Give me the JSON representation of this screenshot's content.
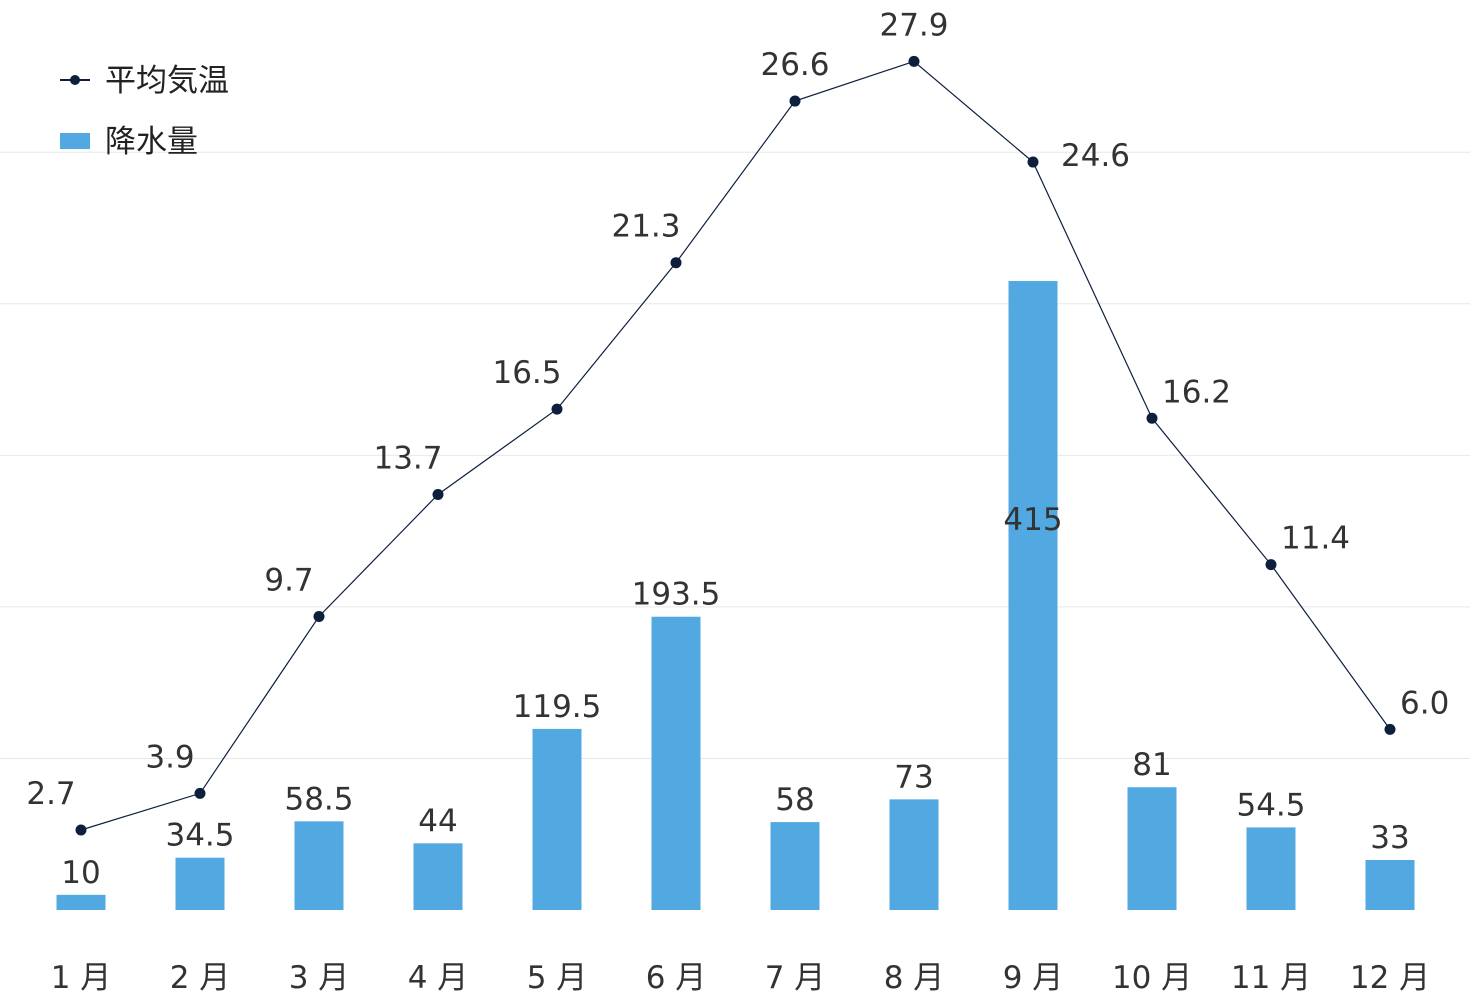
{
  "chart_data": {
    "type": "bar+line",
    "categories": [
      "1月",
      "2月",
      "3月",
      "4月",
      "5月",
      "6月",
      "7月",
      "8月",
      "9月",
      "10月",
      "11月",
      "12月"
    ],
    "x_tick_labels": [
      "1 月",
      "2 月",
      "3 月",
      "4 月",
      "5 月",
      "6 月",
      "7 月",
      "8 月",
      "9 月",
      "10 月",
      "11 月",
      "12 月"
    ],
    "series": [
      {
        "name": "平均気温",
        "type": "line",
        "color": "#0d1f3c",
        "values": [
          2.7,
          3.9,
          9.7,
          13.7,
          16.5,
          21.3,
          26.6,
          27.9,
          24.6,
          16.2,
          11.4,
          6.0
        ],
        "labels": [
          "2.7",
          "3.9",
          "9.7",
          "13.7",
          "16.5",
          "21.3",
          "26.6",
          "27.9",
          "24.6",
          "16.2",
          "11.4",
          "6.0"
        ],
        "axis_range": [
          -0.9,
          29.2
        ]
      },
      {
        "name": "降水量",
        "type": "bar",
        "color": "#52a9e1",
        "values": [
          10,
          34.5,
          58.5,
          44,
          119.5,
          193.5,
          58,
          73,
          415,
          81,
          54.5,
          33
        ],
        "labels": [
          "10",
          "34.5",
          "58.5",
          "44",
          "119.5",
          "193.5",
          "58",
          "73",
          "415",
          "81",
          "54.5",
          "33"
        ],
        "axis_range": [
          0,
          500
        ]
      }
    ],
    "title": "",
    "xlabel": "",
    "ylabel": "",
    "grid": true,
    "gridlines_bar_units": [
      100,
      200,
      300,
      400,
      500
    ],
    "legend_position": "top-left"
  }
}
